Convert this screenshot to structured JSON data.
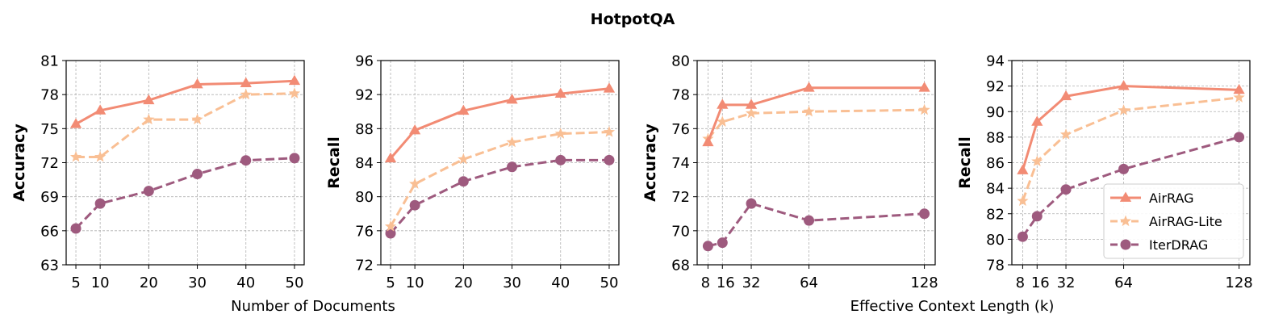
{
  "figure": {
    "title": "HotpotQA",
    "shared_xlabels": [
      "Number of Documents",
      "Effective Context Length (k)"
    ]
  },
  "legend": {
    "entries": [
      "AirRAG",
      "AirRAG-Lite",
      "IterDRAG"
    ],
    "placement": "lower-right of last panel"
  },
  "styles": {
    "AirRAG": {
      "color": "#f28b74",
      "marker": "triangle",
      "dash": "solid"
    },
    "AirRAG-Lite": {
      "color": "#f9bf94",
      "marker": "star",
      "dash": "dashed"
    },
    "IterDRAG": {
      "color": "#9e5a7e",
      "marker": "circle",
      "dash": "dashed"
    }
  },
  "chart_data": [
    {
      "type": "line",
      "title": "",
      "xlabel": "",
      "ylabel": "Accuracy",
      "x": [
        5,
        10,
        20,
        30,
        40,
        50
      ],
      "xticks": [
        5,
        10,
        20,
        30,
        40,
        50
      ],
      "xtick_labels": [
        "5",
        "10",
        "20",
        "30",
        "40",
        "50"
      ],
      "xlim": [
        3,
        52
      ],
      "ylim": [
        63,
        81
      ],
      "yticks": [
        63,
        66,
        69,
        72,
        75,
        78,
        81
      ],
      "grid": true,
      "series": [
        {
          "name": "AirRAG",
          "values": [
            75.4,
            76.6,
            77.5,
            78.9,
            79.0,
            79.2
          ]
        },
        {
          "name": "AirRAG-Lite",
          "values": [
            72.5,
            72.5,
            75.8,
            75.8,
            78.0,
            78.1
          ]
        },
        {
          "name": "IterDRAG",
          "values": [
            66.2,
            68.4,
            69.5,
            71.0,
            72.2,
            72.4
          ]
        }
      ]
    },
    {
      "type": "line",
      "title": "",
      "xlabel": "",
      "ylabel": "Recall",
      "x": [
        5,
        10,
        20,
        30,
        40,
        50
      ],
      "xticks": [
        5,
        10,
        20,
        30,
        40,
        50
      ],
      "xtick_labels": [
        "5",
        "10",
        "20",
        "30",
        "40",
        "50"
      ],
      "xlim": [
        3,
        52
      ],
      "ylim": [
        72,
        96
      ],
      "yticks": [
        72,
        76,
        80,
        84,
        88,
        92,
        96
      ],
      "grid": true,
      "series": [
        {
          "name": "AirRAG",
          "values": [
            84.5,
            87.8,
            90.1,
            91.4,
            92.1,
            92.7
          ]
        },
        {
          "name": "AirRAG-Lite",
          "values": [
            76.5,
            81.5,
            84.4,
            86.4,
            87.4,
            87.6
          ]
        },
        {
          "name": "IterDRAG",
          "values": [
            75.7,
            79.0,
            81.8,
            83.5,
            84.3,
            84.3
          ]
        }
      ]
    },
    {
      "type": "line",
      "title": "",
      "xlabel": "",
      "ylabel": "Accuracy",
      "x": [
        8,
        16,
        32,
        64,
        128
      ],
      "xticks": [
        8,
        16,
        32,
        64,
        128
      ],
      "xtick_labels": [
        "8",
        "16",
        "32",
        "64",
        "128"
      ],
      "xlim": [
        2,
        134
      ],
      "ylim": [
        68,
        80
      ],
      "yticks": [
        68,
        70,
        72,
        74,
        76,
        78,
        80
      ],
      "grid": true,
      "series": [
        {
          "name": "AirRAG",
          "values": [
            75.2,
            77.4,
            77.4,
            78.4,
            78.4
          ]
        },
        {
          "name": "AirRAG-Lite",
          "values": [
            75.4,
            76.4,
            76.9,
            77.0,
            77.1
          ]
        },
        {
          "name": "IterDRAG",
          "values": [
            69.1,
            69.3,
            71.6,
            70.6,
            71.0
          ]
        }
      ]
    },
    {
      "type": "line",
      "title": "",
      "xlabel": "",
      "ylabel": "Recall",
      "x": [
        8,
        16,
        32,
        64,
        128
      ],
      "xticks": [
        8,
        16,
        32,
        64,
        128
      ],
      "xtick_labels": [
        "8",
        "16",
        "32",
        "64",
        "128"
      ],
      "xlim": [
        2,
        134
      ],
      "ylim": [
        78,
        94
      ],
      "yticks": [
        78,
        80,
        82,
        84,
        86,
        88,
        90,
        92,
        94
      ],
      "grid": true,
      "series": [
        {
          "name": "AirRAG",
          "values": [
            85.4,
            89.2,
            91.2,
            92.0,
            91.7
          ]
        },
        {
          "name": "AirRAG-Lite",
          "values": [
            83.0,
            86.1,
            88.2,
            90.1,
            91.1
          ]
        },
        {
          "name": "IterDRAG",
          "values": [
            80.2,
            81.8,
            83.9,
            85.5,
            88.0
          ]
        }
      ]
    }
  ]
}
